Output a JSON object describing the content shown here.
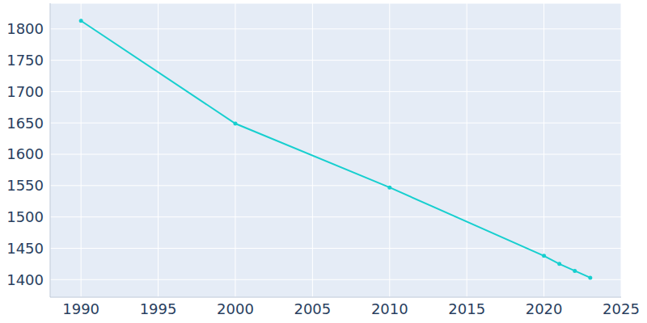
{
  "chart_data": {
    "type": "line",
    "x": [
      1990,
      2000,
      2010,
      2020,
      2021,
      2022,
      2023
    ],
    "values": [
      1813,
      1649,
      1547,
      1438,
      1425,
      1414,
      1403
    ],
    "color": "#17cfcf",
    "marker": "circle",
    "xlim": [
      1988,
      2025
    ],
    "xticks": [
      1990,
      1995,
      2000,
      2005,
      2010,
      2015,
      2020,
      2025
    ],
    "ylim": [
      1372,
      1841
    ],
    "yticks": [
      1400,
      1450,
      1500,
      1550,
      1600,
      1650,
      1700,
      1750,
      1800
    ],
    "grid": true
  }
}
